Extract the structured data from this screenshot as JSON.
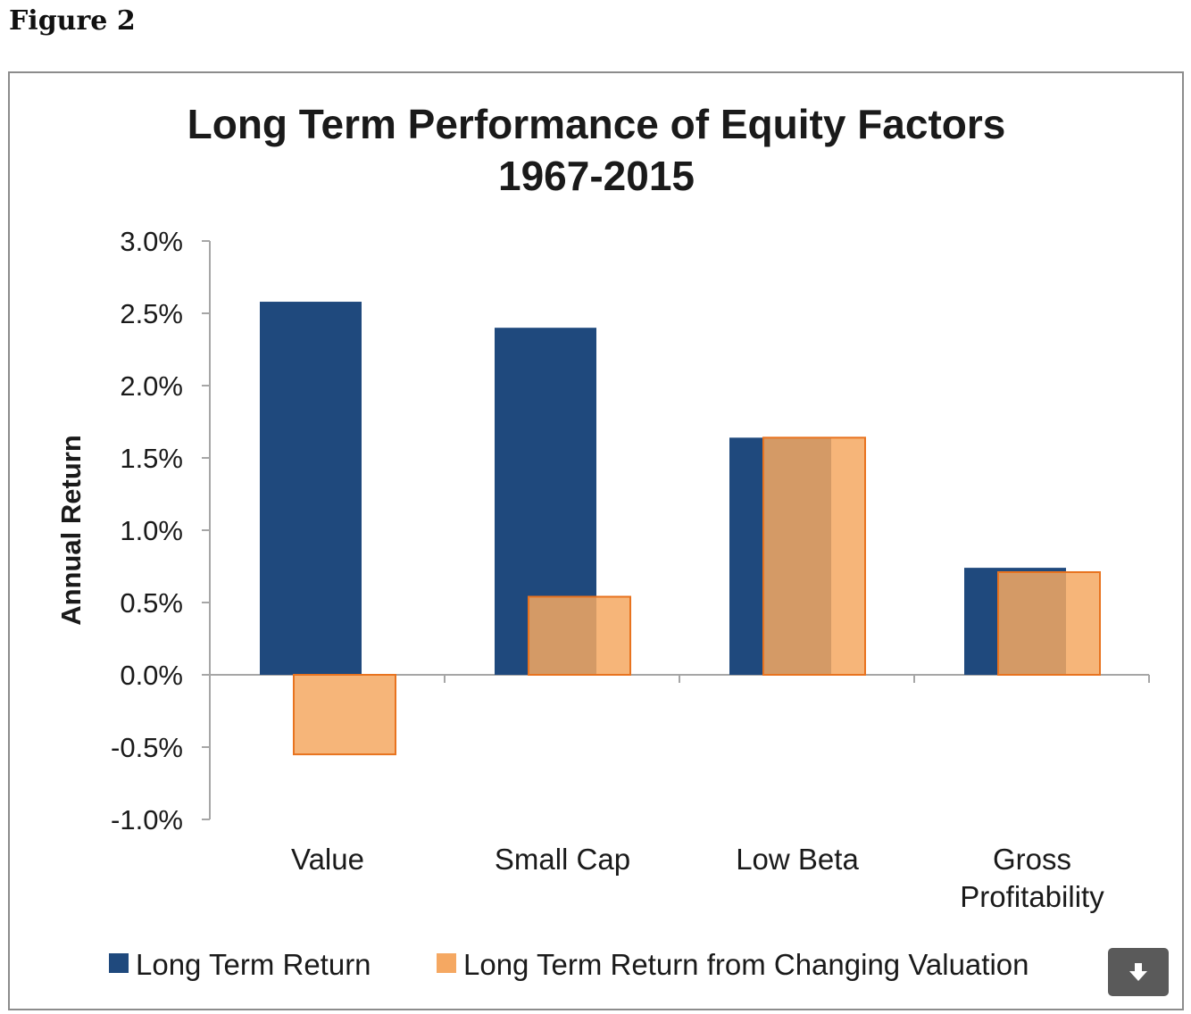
{
  "figure_label": "Figure 2",
  "download_icon": "download-arrow-icon",
  "chart_data": {
    "type": "bar",
    "title": "Long Term Performance of Equity Factors",
    "subtitle": "1967-2015",
    "ylabel": "Annual Return",
    "xlabel": "",
    "categories": [
      "Value",
      "Small Cap",
      "Low Beta",
      "Gross Profitability"
    ],
    "category_lines": [
      [
        "Value"
      ],
      [
        "Small Cap"
      ],
      [
        "Low Beta"
      ],
      [
        "Gross",
        "Profitability"
      ]
    ],
    "series": [
      {
        "name": "Long Term Return",
        "values": [
          2.58,
          2.4,
          1.64,
          0.74
        ],
        "color": "#1f497d"
      },
      {
        "name": "Long Term Return from Changing Valuation",
        "values": [
          -0.55,
          0.54,
          1.64,
          0.71
        ],
        "color": "#f5a862"
      }
    ],
    "ylim": [
      -1.0,
      3.0
    ],
    "yticks": [
      "3.0%",
      "2.5%",
      "2.0%",
      "1.5%",
      "1.0%",
      "0.5%",
      "0.0%",
      "-0.5%",
      "-1.0%"
    ],
    "grid": false,
    "legend_position": "bottom",
    "colors": {
      "axis": "#a6a6a6",
      "text": "#1a1a1a",
      "overlap": "#cc8a55",
      "orange_border": "#e8731f"
    }
  }
}
